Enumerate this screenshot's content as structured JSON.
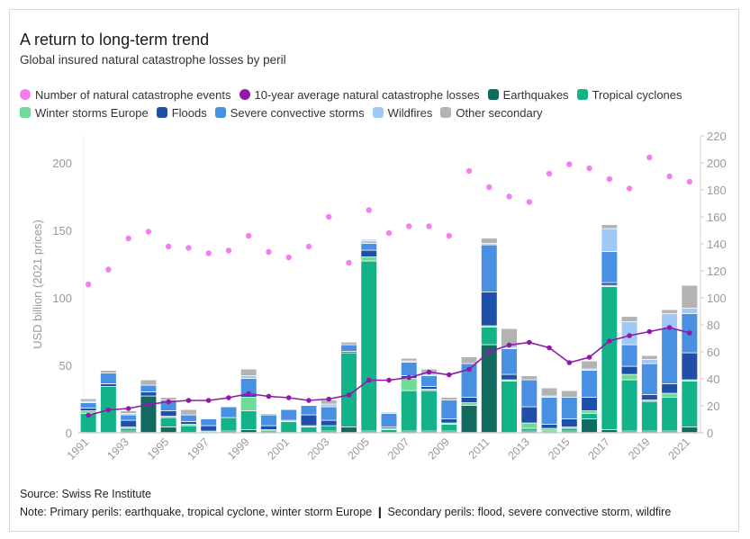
{
  "header": {
    "title": "A return to long-term trend",
    "subtitle": "Global insured natural catastrophe losses by peril"
  },
  "footer": {
    "source": "Source: Swiss Re Institute",
    "note": "Note: Primary perils: earthquake, tropical cyclone, winter storm Europe ❙ Secondary perils: flood, severe convective storm, wildfire"
  },
  "legend": [
    {
      "label": "Number of natural catastrophe events",
      "color": "#f27ff0",
      "shape": "dot"
    },
    {
      "label": "10-year average natural catastrophe losses",
      "color": "#8f1aa8",
      "shape": "dot"
    },
    {
      "label": "Earthquakes",
      "color": "#106a5f",
      "shape": "square"
    },
    {
      "label": "Tropical cyclones",
      "color": "#13b38a",
      "shape": "square"
    },
    {
      "label": "Winter storms Europe",
      "color": "#6fdc96",
      "shape": "square"
    },
    {
      "label": "Floods",
      "color": "#1f4fa8",
      "shape": "square"
    },
    {
      "label": "Severe convective storms",
      "color": "#4a90e2",
      "shape": "square"
    },
    {
      "label": "Wildfires",
      "color": "#9fc8f7",
      "shape": "square"
    },
    {
      "label": "Other secondary",
      "color": "#b3b3b3",
      "shape": "square"
    }
  ],
  "chart_data": {
    "type": "bar",
    "stacked": true,
    "x": [
      1991,
      1992,
      1993,
      1994,
      1995,
      1996,
      1997,
      1998,
      1999,
      2000,
      2001,
      2002,
      2003,
      2004,
      2005,
      2006,
      2007,
      2008,
      2009,
      2010,
      2011,
      2012,
      2013,
      2014,
      2015,
      2016,
      2017,
      2018,
      2019,
      2020,
      2021
    ],
    "x_tick_labels": [
      "1991",
      "1993",
      "1995",
      "1997",
      "1999",
      "2001",
      "2003",
      "2005",
      "2007",
      "2009",
      "2011",
      "2013",
      "2015",
      "2017",
      "2019",
      "2021"
    ],
    "ylabel": "USD billion (2021 prices)",
    "ylim": [
      0,
      220
    ],
    "y_ticks": [
      0,
      50,
      100,
      150,
      200
    ],
    "y2lim": [
      0,
      220
    ],
    "y2_ticks": [
      0,
      20,
      40,
      60,
      80,
      100,
      120,
      140,
      160,
      180,
      200,
      220
    ],
    "grid": false,
    "legend_position": "top",
    "series": [
      {
        "name": "Earthquakes",
        "color": "#106a5f",
        "values": [
          0,
          0,
          1,
          27,
          4,
          0,
          0,
          1,
          2,
          1,
          0,
          0,
          1,
          4,
          1,
          0,
          1,
          1,
          1,
          20,
          65,
          0,
          1,
          0,
          1,
          10,
          2,
          1,
          1,
          1,
          4
        ]
      },
      {
        "name": "Tropical cyclones",
        "color": "#13b38a",
        "values": [
          14,
          34,
          2,
          0,
          7,
          5,
          0,
          10,
          14,
          0,
          8,
          4,
          4,
          55,
          126,
          2,
          30,
          30,
          5,
          0,
          13,
          38,
          2,
          1,
          2,
          4,
          106,
          38,
          22,
          25,
          34
        ]
      },
      {
        "name": "Winter storms Europe",
        "color": "#6fdc96",
        "values": [
          2,
          0,
          1,
          0,
          1,
          1,
          1,
          0,
          10,
          1,
          1,
          1,
          0,
          0,
          3,
          1,
          9,
          1,
          1,
          2,
          1,
          1,
          4,
          2,
          1,
          2,
          1,
          4,
          1,
          3,
          1
        ]
      },
      {
        "name": "Floods",
        "color": "#1f4fa8",
        "values": [
          2,
          2,
          5,
          3,
          4,
          2,
          4,
          0,
          2,
          3,
          0,
          8,
          4,
          1,
          5,
          1,
          2,
          2,
          3,
          4,
          25,
          4,
          12,
          3,
          6,
          10,
          2,
          6,
          4,
          7,
          20
        ]
      },
      {
        "name": "Severe convective storms",
        "color": "#4a90e2",
        "values": [
          4,
          8,
          4,
          5,
          8,
          5,
          5,
          8,
          12,
          8,
          8,
          7,
          10,
          5,
          5,
          10,
          10,
          8,
          14,
          25,
          35,
          19,
          20,
          20,
          16,
          20,
          23,
          16,
          23,
          41,
          29
        ]
      },
      {
        "name": "Wildfires",
        "color": "#9fc8f7",
        "values": [
          1,
          0,
          1,
          0,
          0,
          0,
          0,
          0,
          2,
          0,
          0,
          0,
          2,
          0,
          2,
          0,
          1,
          1,
          0,
          0,
          1,
          1,
          0,
          1,
          0,
          1,
          17,
          17,
          3,
          11,
          4
        ]
      },
      {
        "name": "Other secondary",
        "color": "#b3b3b3",
        "values": [
          2,
          2,
          2,
          4,
          2,
          4,
          0,
          0,
          5,
          1,
          0,
          0,
          3,
          2,
          1,
          1,
          2,
          4,
          2,
          5,
          4,
          14,
          3,
          6,
          5,
          6,
          3,
          4,
          3,
          3,
          17
        ]
      }
    ],
    "events": {
      "name": "Number of natural catastrophe events",
      "color": "#f27ff0",
      "axis": "right",
      "values": [
        110,
        121,
        144,
        149,
        138,
        137,
        133,
        135,
        146,
        134,
        130,
        138,
        160,
        126,
        165,
        148,
        153,
        153,
        146,
        194,
        182,
        175,
        171,
        192,
        199,
        196,
        188,
        181,
        204,
        190,
        186
      ]
    },
    "ten_year_average": {
      "name": "10-year average natural catastrophe losses",
      "color": "#8f1aa8",
      "axis": "left",
      "values": [
        13,
        17,
        18,
        21,
        23,
        24,
        24,
        26,
        29,
        27,
        26,
        24,
        25,
        28,
        39,
        39,
        41,
        45,
        43,
        47,
        60,
        65,
        67,
        63,
        52,
        56,
        68,
        72,
        75,
        78,
        74
      ]
    }
  }
}
